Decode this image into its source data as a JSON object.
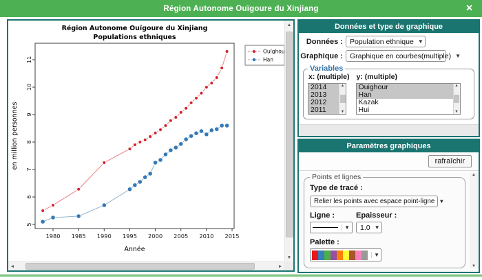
{
  "window": {
    "title": "Région Autonome Ouïgoure du Xinjiang",
    "close_glyph": "✕"
  },
  "chart_data": {
    "type": "line",
    "title": "Région Autonome Ouïgoure du Xinjiang",
    "subtitle": "Populations ethniques",
    "xlabel": "Année",
    "ylabel": "en million personnes",
    "x": [
      1978,
      1980,
      1985,
      1990,
      1995,
      1996,
      1997,
      1998,
      1999,
      2000,
      2001,
      2002,
      2003,
      2004,
      2005,
      2006,
      2007,
      2008,
      2009,
      2010,
      2011,
      2012,
      2013,
      2014
    ],
    "series": [
      {
        "name": "Ouïghour",
        "color": "#d2232a",
        "line_color": "#e87f82",
        "point_radius": 2.0,
        "values": [
          5.5,
          5.7,
          6.28,
          7.25,
          7.75,
          7.9,
          8.0,
          8.08,
          8.2,
          8.33,
          8.45,
          8.6,
          8.78,
          8.9,
          9.08,
          9.23,
          9.43,
          9.6,
          9.78,
          10.0,
          10.15,
          10.35,
          10.7,
          11.3
        ]
      },
      {
        "name": "Han",
        "color": "#3379b5",
        "line_color": "#93b3d0",
        "point_radius": 2.8,
        "values": [
          5.1,
          5.25,
          5.3,
          5.7,
          6.28,
          6.43,
          6.55,
          6.72,
          6.85,
          7.25,
          7.35,
          7.55,
          7.7,
          7.8,
          7.93,
          8.1,
          8.22,
          8.32,
          8.4,
          8.28,
          8.43,
          8.47,
          8.6,
          8.6
        ]
      }
    ],
    "xticks": [
      1980,
      1985,
      1990,
      1995,
      2000,
      2005,
      2010,
      2015
    ],
    "yticks": [
      5,
      6,
      7,
      8,
      9,
      10,
      11
    ],
    "xlim": [
      1976.5,
      2015.4
    ],
    "ylim": [
      4.85,
      11.6
    ],
    "grid": false,
    "legend_position": "top-right-outside"
  },
  "data_panel": {
    "header": "Données et type de graphique",
    "donnees_label": "Données :",
    "donnees_value": "Population ethnique",
    "graphique_label": "Graphique :",
    "graphique_value": "Graphique en courbes(multiple)",
    "variables_legend": "Variables",
    "x_label": "x: (multiple)",
    "y_label": "y: (multiple)",
    "x_items": [
      {
        "label": "2014",
        "selected": true
      },
      {
        "label": "2013",
        "selected": true
      },
      {
        "label": "2012",
        "selected": true
      },
      {
        "label": "2011",
        "selected": true
      }
    ],
    "y_items": [
      {
        "label": "Ouighour",
        "selected": true
      },
      {
        "label": "Han",
        "selected": true
      },
      {
        "label": "Kazak",
        "selected": false
      },
      {
        "label": "Hui",
        "selected": false
      }
    ]
  },
  "params_panel": {
    "header": "Paramètres graphiques",
    "refresh_label": "rafraîchir",
    "fieldset_legend": "Points et lignes",
    "trace_label": "Type de tracé :",
    "trace_value": "Relier les points avec espace point-ligne",
    "ligne_label": "Ligne :",
    "epaisseur_label": "Epaisseur :",
    "epaisseur_value": "1.0",
    "palette_label": "Palette :",
    "palette_colors": [
      "#e41a1c",
      "#377eb8",
      "#4daf4a",
      "#984ea3",
      "#ff7f00",
      "#ffff33",
      "#a65628",
      "#f781bf",
      "#999999"
    ]
  },
  "colors": {
    "titlebar_green": "#4db153",
    "teal": "#1a7470",
    "selection_gray": "#c6c6c6"
  },
  "scrollbar_glyphs": {
    "up": "▲",
    "down": "▼",
    "left": "◄",
    "right": "►"
  },
  "dropdown_arrow": "▼"
}
